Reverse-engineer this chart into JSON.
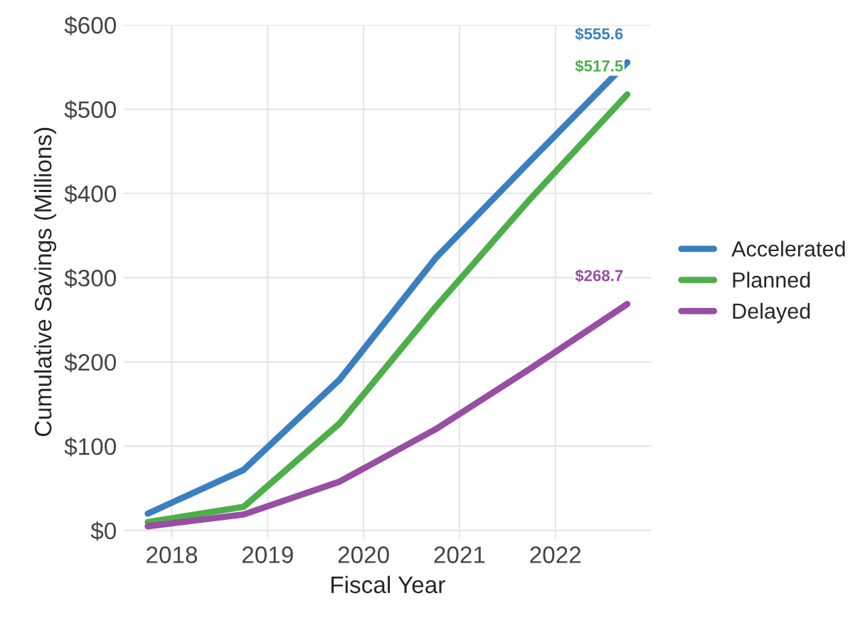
{
  "chart_data": {
    "type": "line",
    "xlabel": "Fiscal Year",
    "ylabel": "Cumulative Savings (Millions)",
    "xlim": [
      2017.5,
      2023.0
    ],
    "xticks": [
      2018,
      2019,
      2020,
      2021,
      2022
    ],
    "ylim": [
      -10,
      600
    ],
    "yticks": [
      {
        "value": 0,
        "label": "$0"
      },
      {
        "value": 100,
        "label": "$100"
      },
      {
        "value": 200,
        "label": "$200"
      },
      {
        "value": 300,
        "label": "$300"
      },
      {
        "value": 400,
        "label": "$400"
      },
      {
        "value": 500,
        "label": "$500"
      },
      {
        "value": 600,
        "label": "$600"
      }
    ],
    "x": [
      2017.75,
      2018.75,
      2019.75,
      2020.75,
      2021.75,
      2022.75
    ],
    "series": [
      {
        "name": "Accelerated",
        "color": "#3a7fbf",
        "values": [
          20,
          72,
          179,
          323,
          440,
          555.6
        ],
        "value_labels": [
          null,
          null,
          null,
          null,
          null,
          "$555.6"
        ]
      },
      {
        "name": "Planned",
        "color": "#4daf4a",
        "values": [
          10,
          28,
          127,
          265,
          395,
          517.5
        ],
        "value_labels": [
          null,
          null,
          null,
          null,
          null,
          "$517.5"
        ]
      },
      {
        "name": "Delayed",
        "color": "#984ea3",
        "values": [
          5,
          19,
          58,
          120,
          193,
          268.7
        ],
        "value_labels": [
          null,
          null,
          null,
          null,
          null,
          "$268.7"
        ]
      }
    ],
    "grid": true,
    "legend": "right",
    "marker": "none",
    "line_style": "solid"
  }
}
